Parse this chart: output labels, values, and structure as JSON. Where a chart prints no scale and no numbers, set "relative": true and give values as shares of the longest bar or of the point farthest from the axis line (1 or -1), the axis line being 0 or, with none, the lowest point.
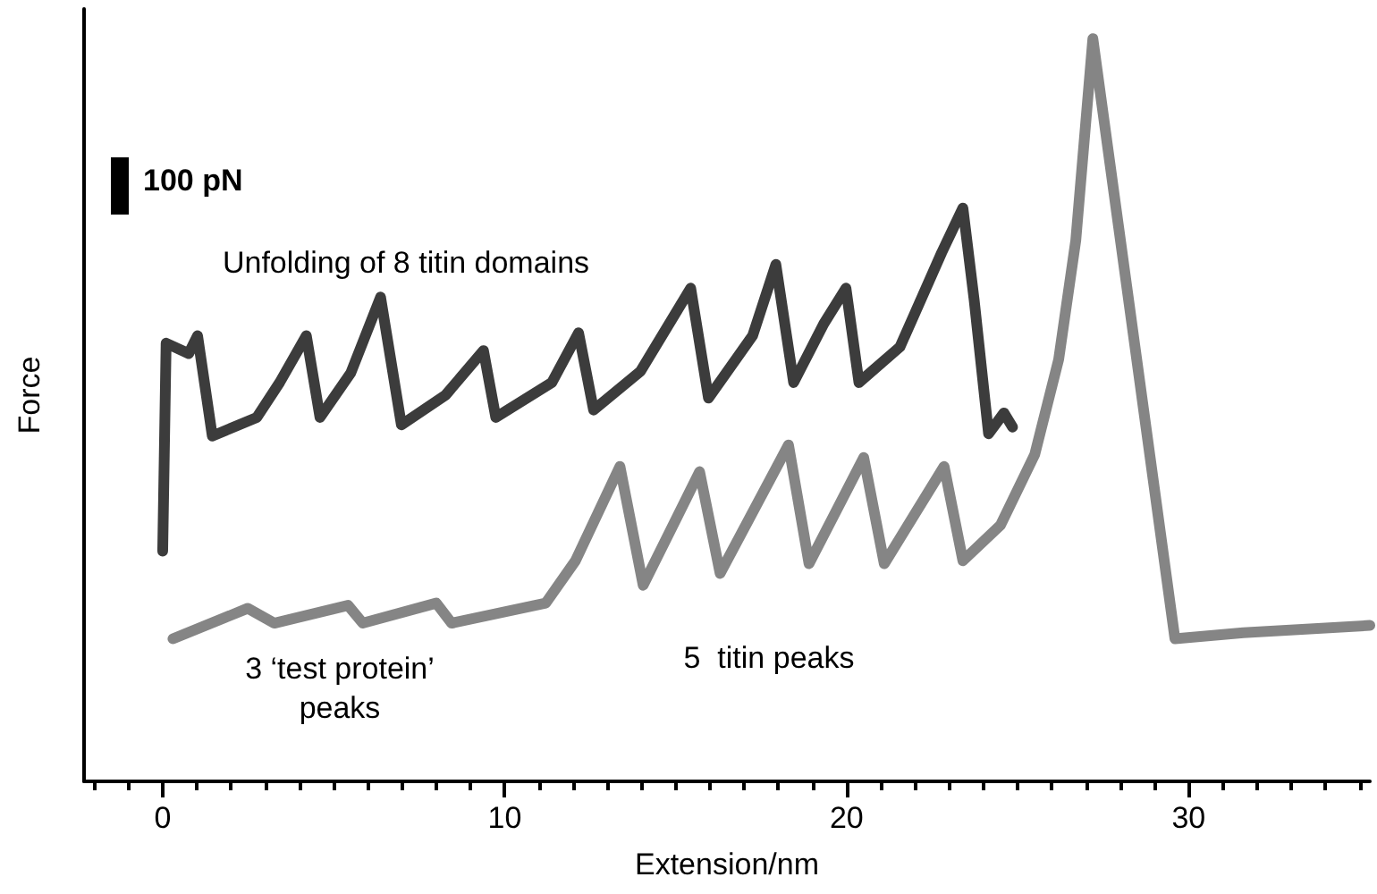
{
  "chart_data": {
    "type": "line",
    "xlabel": "Extension/nm",
    "ylabel": "Force",
    "relative": true,
    "grid": false,
    "marker": "none",
    "line_style": "solid",
    "xlim": [
      -2.3,
      35.3
    ],
    "xticks": [
      {
        "value": -2,
        "label": null
      },
      {
        "value": -1,
        "label": null
      },
      0,
      {
        "value": 1,
        "label": null
      },
      {
        "value": 2,
        "label": null
      },
      {
        "value": 3,
        "label": null
      },
      {
        "value": 4,
        "label": null
      },
      {
        "value": 5,
        "label": null
      },
      {
        "value": 6,
        "label": null
      },
      {
        "value": 7,
        "label": null
      },
      {
        "value": 8,
        "label": null
      },
      {
        "value": 9,
        "label": null
      },
      10,
      {
        "value": 11,
        "label": null
      },
      {
        "value": 12,
        "label": null
      },
      {
        "value": 13,
        "label": null
      },
      {
        "value": 14,
        "label": null
      },
      {
        "value": 15,
        "label": null
      },
      {
        "value": 16,
        "label": null
      },
      {
        "value": 17,
        "label": null
      },
      {
        "value": 18,
        "label": null
      },
      {
        "value": 19,
        "label": null
      },
      20,
      {
        "value": 21,
        "label": null
      },
      {
        "value": 22,
        "label": null
      },
      {
        "value": 23,
        "label": null
      },
      {
        "value": 24,
        "label": null
      },
      {
        "value": 25,
        "label": null
      },
      {
        "value": 26,
        "label": null
      },
      {
        "value": 27,
        "label": null
      },
      {
        "value": 28,
        "label": null
      },
      {
        "value": 29,
        "label": null
      },
      30,
      {
        "value": 31,
        "label": null
      },
      {
        "value": 32,
        "label": null
      },
      {
        "value": 33,
        "label": null
      },
      {
        "value": 34,
        "label": null
      },
      {
        "value": 35,
        "label": null
      }
    ],
    "series": [
      {
        "color": "#3c3c3c",
        "x": [
          0,
          0.1,
          0.76,
          1.02,
          1.45,
          2.75,
          3.42,
          4.2,
          4.6,
          5.5,
          6.37,
          6.98,
          8.27,
          9.38,
          9.74,
          11.38,
          12.16,
          12.6,
          13.97,
          15.44,
          15.96,
          17.25,
          17.93,
          18.45,
          19.33,
          19.98,
          20.36,
          21.56,
          22.78,
          23.4,
          23.73,
          24.15,
          24.6,
          24.85
        ],
        "values": [
          0.31,
          0.59,
          0.576,
          0.6,
          0.465,
          0.49,
          0.537,
          0.6,
          0.49,
          0.55,
          0.652,
          0.48,
          0.52,
          0.58,
          0.49,
          0.537,
          0.604,
          0.5,
          0.552,
          0.664,
          0.516,
          0.6,
          0.696,
          0.537,
          0.616,
          0.664,
          0.537,
          0.585,
          0.712,
          0.772,
          0.648,
          0.468,
          0.496,
          0.477
        ]
      },
      {
        "color": "#858585",
        "x": [
          0.3,
          2.49,
          3.26,
          5.42,
          5.85,
          8.0,
          8.45,
          11.2,
          12.07,
          13.37,
          14.05,
          15.7,
          16.3,
          18.3,
          18.9,
          20.5,
          21.1,
          22.85,
          23.4,
          24.5,
          25.5,
          26.2,
          26.7,
          27.2,
          29.6,
          31.6,
          35.3
        ],
        "values": [
          0.192,
          0.233,
          0.213,
          0.237,
          0.213,
          0.24,
          0.213,
          0.24,
          0.297,
          0.424,
          0.264,
          0.417,
          0.28,
          0.453,
          0.293,
          0.436,
          0.293,
          0.424,
          0.297,
          0.345,
          0.44,
          0.568,
          0.728,
          1,
          0.192,
          0.2,
          0.21
        ]
      }
    ],
    "annotations": [
      "100 pN",
      "Unfolding of 8 titin domains",
      "5  titin peaks",
      "3 ‘test protein’\npeaks"
    ]
  }
}
